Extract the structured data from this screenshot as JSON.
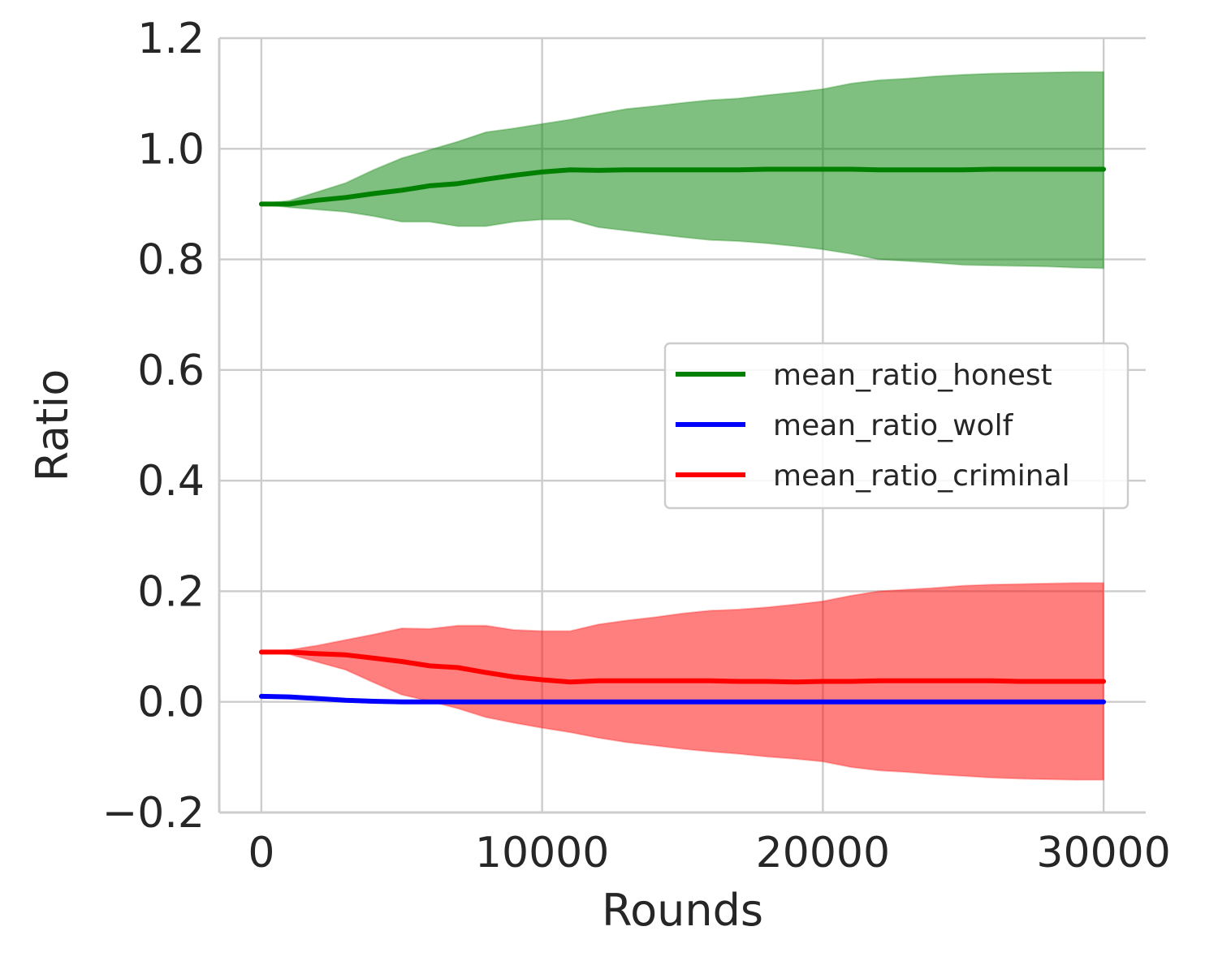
{
  "chart_data": {
    "type": "line",
    "title": "",
    "xlabel": "Rounds",
    "ylabel": "Ratio",
    "xlim": [
      -1500,
      31500
    ],
    "ylim": [
      -0.2,
      1.2
    ],
    "xticks": [
      0,
      10000,
      20000,
      30000
    ],
    "xtick_labels": [
      "0",
      "10000",
      "20000",
      "30000"
    ],
    "yticks": [
      -0.2,
      0.0,
      0.2,
      0.4,
      0.6,
      0.8,
      1.0,
      1.2
    ],
    "ytick_labels": [
      "−0.2",
      "0.0",
      "0.2",
      "0.4",
      "0.6",
      "0.8",
      "1.0",
      "1.2"
    ],
    "grid": true,
    "legend_position": "center-right",
    "x": [
      0,
      1000,
      2000,
      3000,
      4000,
      5000,
      6000,
      7000,
      8000,
      9000,
      10000,
      11000,
      12000,
      13000,
      14000,
      15000,
      16000,
      17000,
      18000,
      19000,
      20000,
      21000,
      22000,
      23000,
      24000,
      25000,
      26000,
      27000,
      28000,
      29000,
      30000
    ],
    "series": [
      {
        "name": "mean_ratio_honest",
        "color": "#008000",
        "values": [
          0.9,
          0.9,
          0.907,
          0.912,
          0.919,
          0.925,
          0.933,
          0.937,
          0.945,
          0.952,
          0.958,
          0.962,
          0.961,
          0.962,
          0.962,
          0.962,
          0.962,
          0.962,
          0.963,
          0.963,
          0.963,
          0.963,
          0.962,
          0.962,
          0.962,
          0.962,
          0.963,
          0.963,
          0.963,
          0.963,
          0.963
        ],
        "lower": [
          0.9,
          0.894,
          0.89,
          0.886,
          0.878,
          0.868,
          0.868,
          0.86,
          0.86,
          0.868,
          0.872,
          0.872,
          0.858,
          0.852,
          0.846,
          0.84,
          0.835,
          0.833,
          0.829,
          0.824,
          0.818,
          0.81,
          0.8,
          0.797,
          0.794,
          0.79,
          0.789,
          0.788,
          0.787,
          0.785,
          0.784
        ],
        "upper": [
          0.9,
          0.906,
          0.922,
          0.938,
          0.962,
          0.983,
          0.998,
          1.013,
          1.03,
          1.037,
          1.045,
          1.053,
          1.063,
          1.072,
          1.077,
          1.083,
          1.088,
          1.091,
          1.097,
          1.102,
          1.108,
          1.118,
          1.124,
          1.127,
          1.131,
          1.134,
          1.136,
          1.137,
          1.138,
          1.139,
          1.139
        ]
      },
      {
        "name": "mean_ratio_wolf",
        "color": "#0000ff",
        "values": [
          0.01,
          0.009,
          0.006,
          0.003,
          0.001,
          0.0,
          0.0,
          0.0,
          0.0,
          0.0,
          0.0,
          0.0,
          0.0,
          0.0,
          0.0,
          0.0,
          0.0,
          0.0,
          0.0,
          0.0,
          0.0,
          0.0,
          0.0,
          0.0,
          0.0,
          0.0,
          0.0,
          0.0,
          0.0,
          0.0,
          0.0
        ]
      },
      {
        "name": "mean_ratio_criminal",
        "color": "#ff0000",
        "values": [
          0.09,
          0.09,
          0.087,
          0.085,
          0.079,
          0.073,
          0.065,
          0.062,
          0.053,
          0.045,
          0.04,
          0.036,
          0.038,
          0.038,
          0.038,
          0.038,
          0.038,
          0.037,
          0.037,
          0.036,
          0.037,
          0.037,
          0.038,
          0.038,
          0.038,
          0.038,
          0.038,
          0.037,
          0.037,
          0.037,
          0.037
        ],
        "lower": [
          0.09,
          0.086,
          0.072,
          0.058,
          0.035,
          0.013,
          0.001,
          -0.012,
          -0.028,
          -0.038,
          -0.047,
          -0.055,
          -0.065,
          -0.073,
          -0.079,
          -0.085,
          -0.09,
          -0.094,
          -0.099,
          -0.103,
          -0.108,
          -0.118,
          -0.124,
          -0.127,
          -0.131,
          -0.134,
          -0.137,
          -0.139,
          -0.14,
          -0.141,
          -0.141
        ],
        "upper": [
          0.09,
          0.094,
          0.102,
          0.112,
          0.122,
          0.133,
          0.132,
          0.138,
          0.138,
          0.13,
          0.128,
          0.128,
          0.14,
          0.147,
          0.153,
          0.16,
          0.165,
          0.167,
          0.171,
          0.176,
          0.182,
          0.192,
          0.2,
          0.203,
          0.206,
          0.21,
          0.212,
          0.213,
          0.214,
          0.215,
          0.215
        ]
      }
    ]
  }
}
